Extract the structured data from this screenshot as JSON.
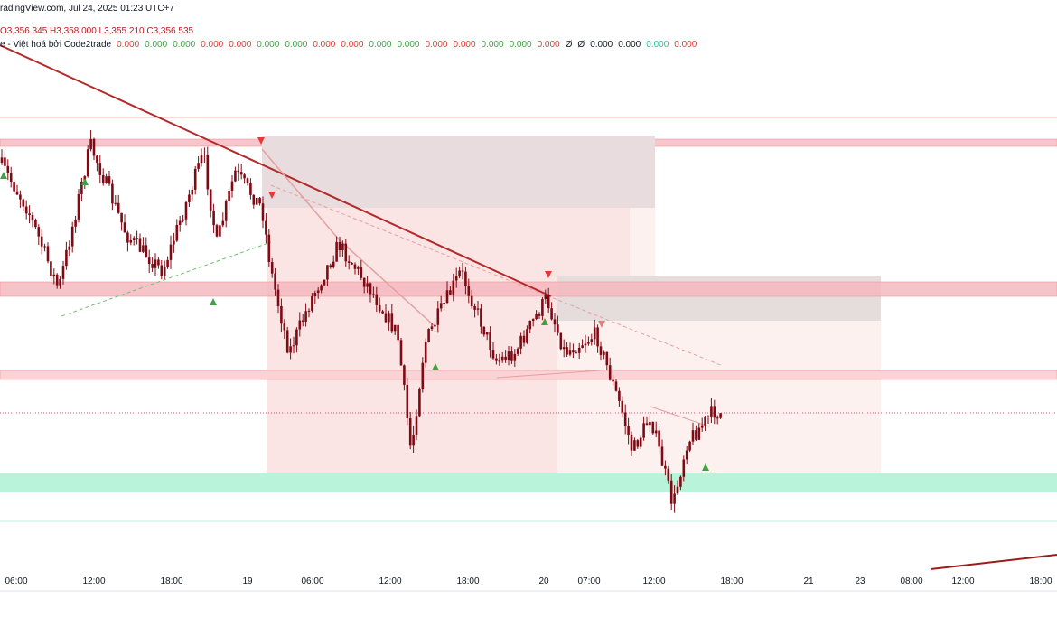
{
  "header": {
    "source": "radingView.com, Jul 24, 2025 01:23 UTC+7",
    "ohlc": "O3,356.345  H3,358.000  L3,355.210  C3,356.535",
    "indicator": "e - Việt hoá bởi Code2trade",
    "indicator_values": [
      {
        "text": "0.000",
        "color": "#e53935"
      },
      {
        "text": "0.000",
        "color": "#43a047"
      },
      {
        "text": "0.000",
        "color": "#43a047"
      },
      {
        "text": "0.000",
        "color": "#e53935"
      },
      {
        "text": "0.000",
        "color": "#e53935"
      },
      {
        "text": "0.000",
        "color": "#43a047"
      },
      {
        "text": "0.000",
        "color": "#43a047"
      },
      {
        "text": "0.000",
        "color": "#e53935"
      },
      {
        "text": "0.000",
        "color": "#e53935"
      },
      {
        "text": "0.000",
        "color": "#43a047"
      },
      {
        "text": "0.000",
        "color": "#43a047"
      },
      {
        "text": "0.000",
        "color": "#e53935"
      },
      {
        "text": "0.000",
        "color": "#e53935"
      },
      {
        "text": "0.000",
        "color": "#43a047"
      },
      {
        "text": "0.000",
        "color": "#43a047"
      },
      {
        "text": "0.000",
        "color": "#e53935"
      },
      {
        "text": "Ø",
        "color": "#131722"
      },
      {
        "text": "Ø",
        "color": "#131722"
      },
      {
        "text": "0.000",
        "color": "#131722"
      },
      {
        "text": "0.000",
        "color": "#131722"
      },
      {
        "text": "0.000",
        "color": "#26c6a0"
      },
      {
        "text": "0.000",
        "color": "#e53935"
      }
    ]
  },
  "time_axis": {
    "labels": [
      "06:00",
      "12:00",
      "18:00",
      "19",
      "06:00",
      "12:00",
      "18:00",
      "20",
      "07:00",
      "12:00",
      "18:00",
      "21",
      "23",
      "08:00",
      "12:00",
      "18:00"
    ]
  }
}
